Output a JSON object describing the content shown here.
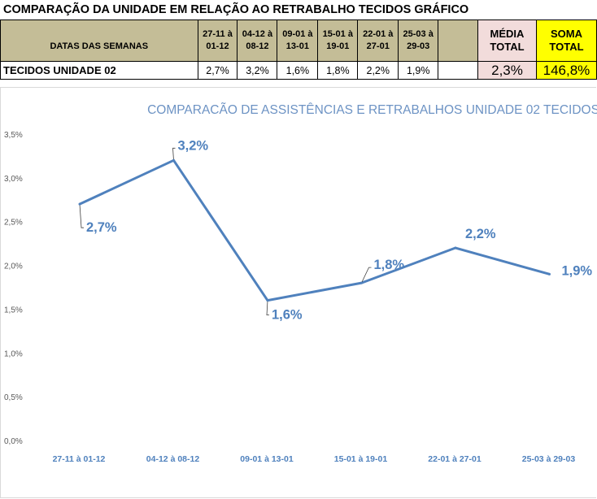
{
  "sheet": {
    "title": "COMPARAÇÃO DA UNIDADE EM RELAÇÃO AO RETRABALHO TECIDOS GRÁFICO",
    "header_label": "DATAS DAS SEMANAS",
    "row_label": "TECIDOS UNIDADE 02",
    "weeks": [
      {
        "line1": "27-11 à",
        "line2": "01-12",
        "value": "2,7%"
      },
      {
        "line1": "04-12 à",
        "line2": "08-12",
        "value": "3,2%"
      },
      {
        "line1": "09-01 à",
        "line2": "13-01",
        "value": "1,6%"
      },
      {
        "line1": "15-01 à",
        "line2": "19-01",
        "value": "1,8%"
      },
      {
        "line1": "22-01 à",
        "line2": "27-01",
        "value": "2,2%"
      },
      {
        "line1": "25-03 à",
        "line2": "29-03",
        "value": "1,9%"
      }
    ],
    "media": {
      "line1": "MÉDIA",
      "line2": "TOTAL",
      "value": "2,3%"
    },
    "soma": {
      "line1": "SOMA",
      "line2": "TOTAL",
      "value": "146,8%"
    }
  },
  "colors": {
    "tan": "#c4bd97",
    "pink": "#f2dcdb",
    "yellow": "#ffff00",
    "series": "#4f81bd",
    "title": "#6d93c4",
    "axis_text": "#595959",
    "grid": "#d9d9d9"
  },
  "chart_data": {
    "type": "line",
    "title": "COMPARACÃO DE ASSISTÊNCIAS E RETRABALHOS UNIDADE 02 TECIDOS",
    "categories": [
      "27-11 à 01-12",
      "04-12 à 08-12",
      "09-01 à 13-01",
      "15-01 à 19-01",
      "22-01 à 27-01",
      "25-03 à 29-03"
    ],
    "series": [
      {
        "values": [
          2.7,
          3.2,
          1.6,
          1.8,
          2.2,
          1.9
        ],
        "labels": [
          "2,7%",
          "3,2%",
          "1,6%",
          "1,8%",
          "2,2%",
          "1,9%"
        ]
      }
    ],
    "ylim": [
      0,
      3.5
    ],
    "yticks": [
      "0,0%",
      "0,5%",
      "1,0%",
      "1,5%",
      "2,0%",
      "2,5%",
      "3,0%",
      "3,5%"
    ],
    "grid": false,
    "legend": "none"
  }
}
